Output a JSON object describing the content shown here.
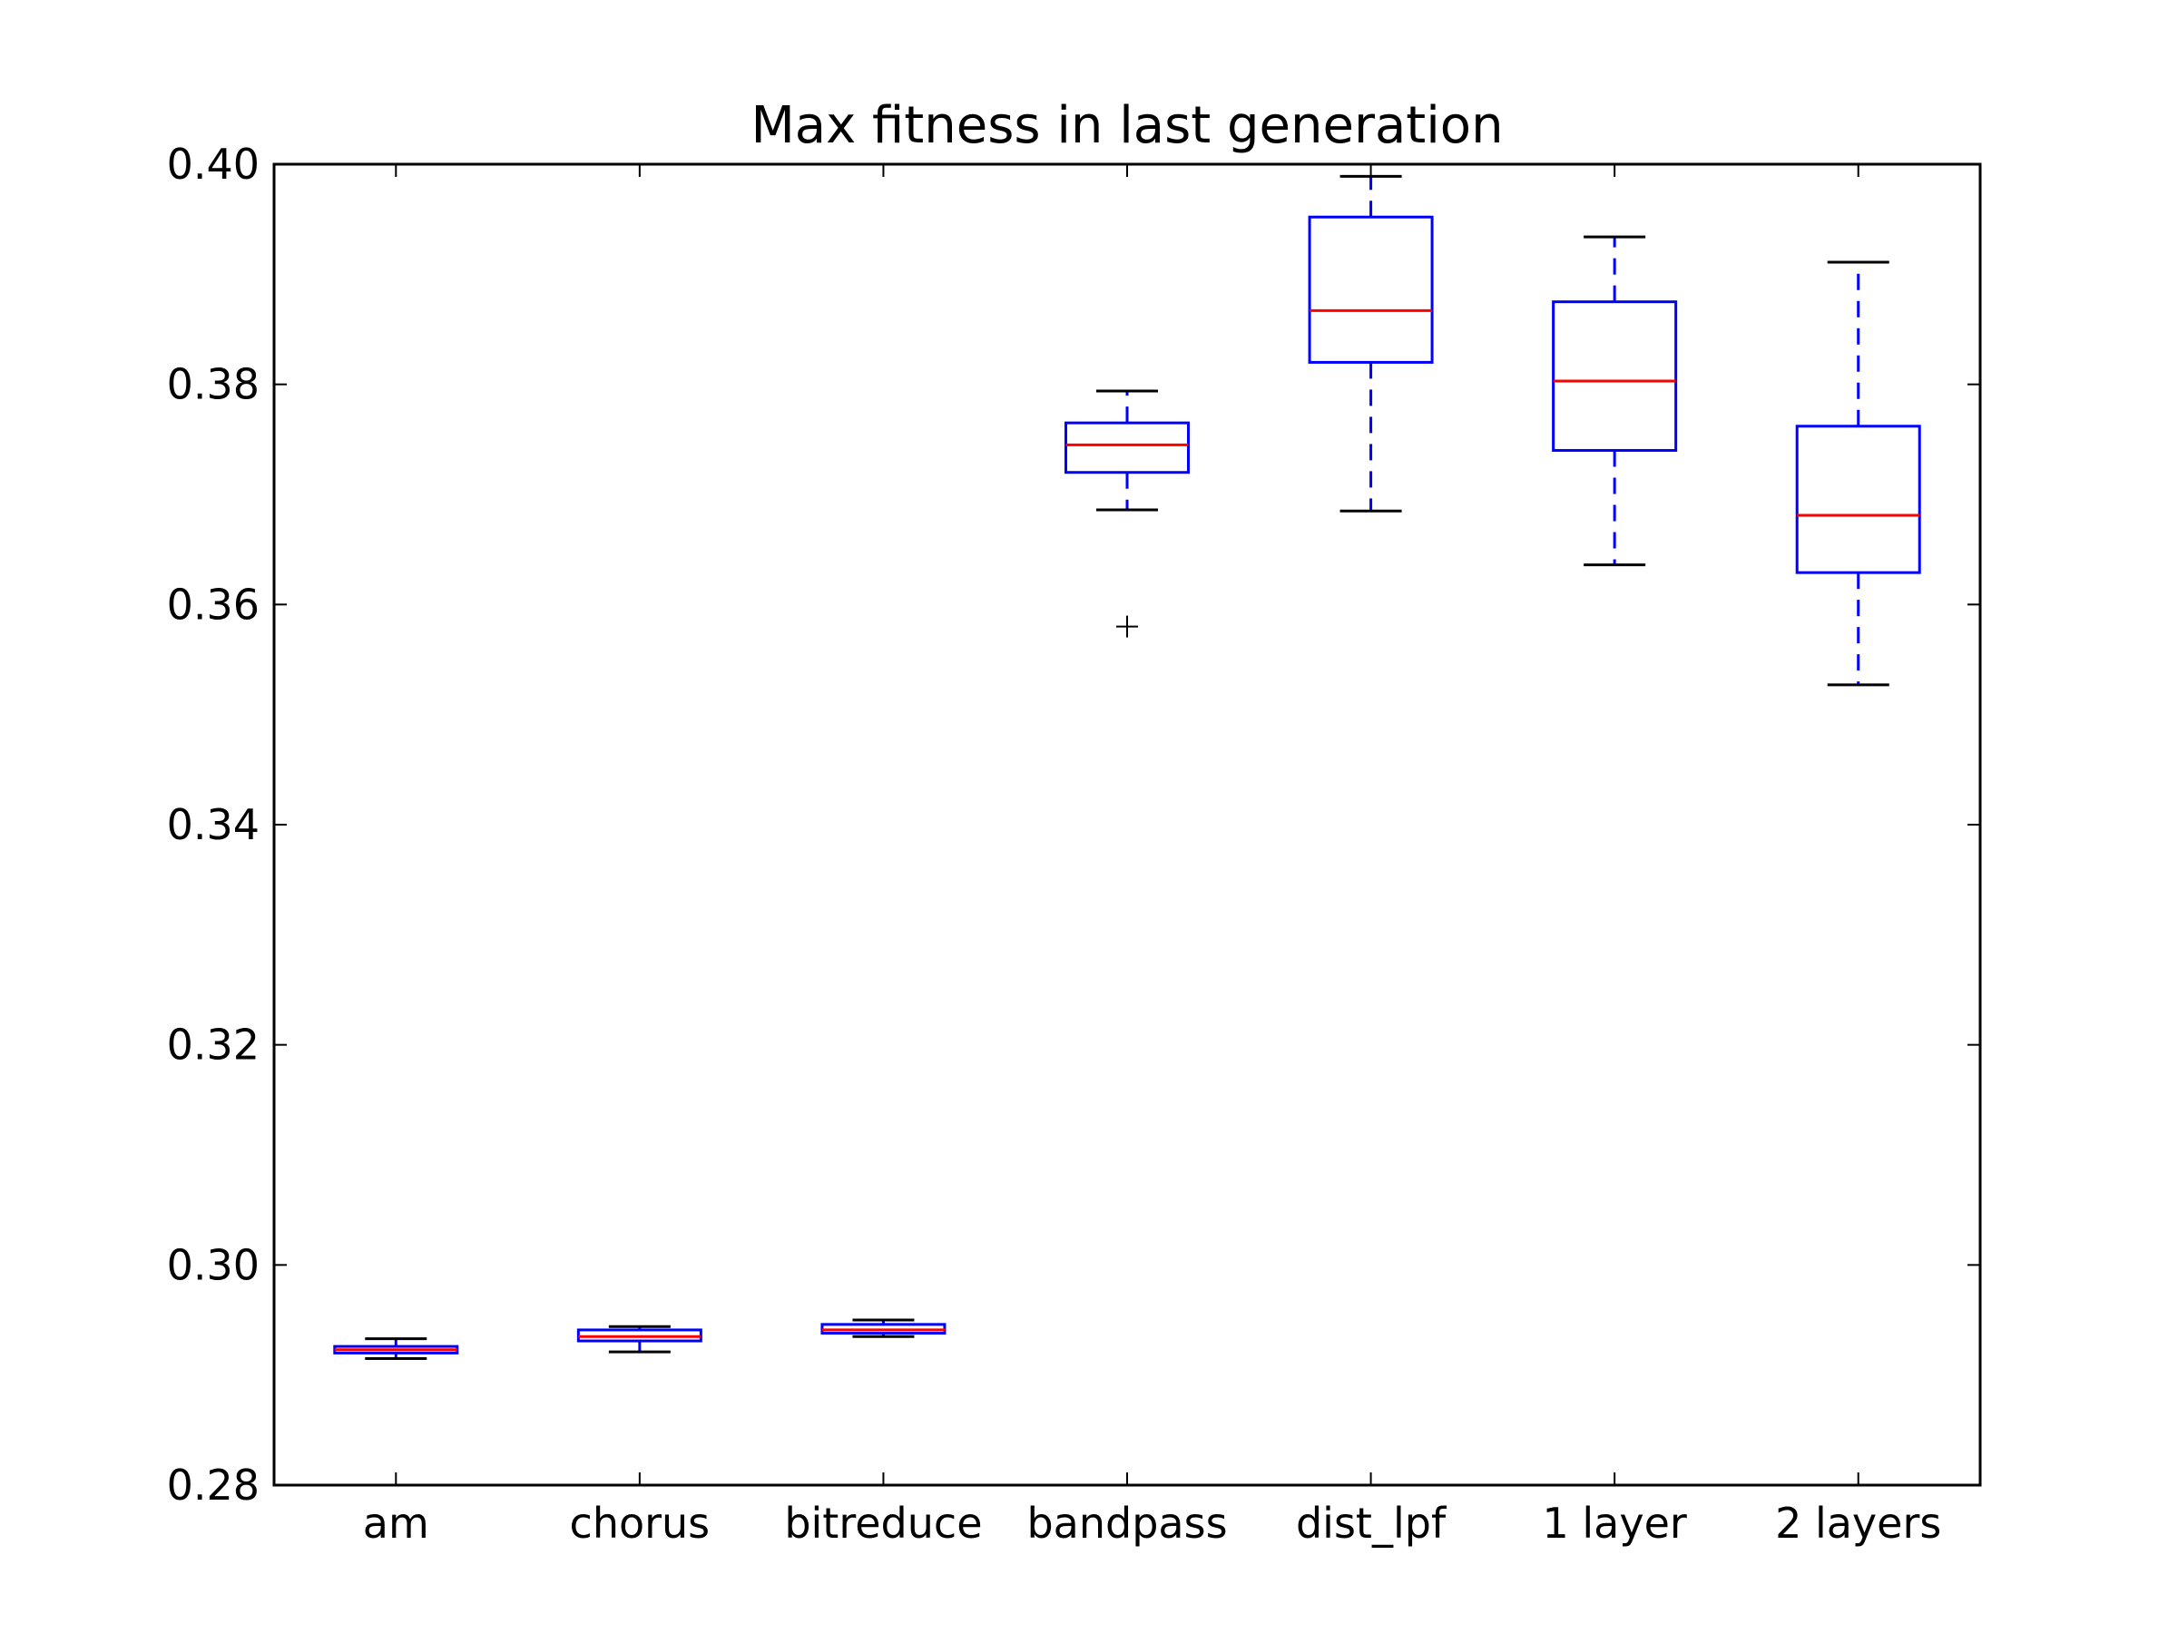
{
  "chart_data": {
    "type": "box",
    "title": "Max fitness in last generation",
    "xlabel": "",
    "ylabel": "",
    "ylim": [
      0.28,
      0.4
    ],
    "yticks": [
      0.28,
      0.3,
      0.32,
      0.34,
      0.36,
      0.38,
      0.4
    ],
    "ytick_labels": [
      "0.28",
      "0.30",
      "0.32",
      "0.34",
      "0.36",
      "0.38",
      "0.40"
    ],
    "grid": false,
    "categories": [
      "am",
      "chorus",
      "bitreduce",
      "bandpass",
      "dist_lpf",
      "1 layer",
      "2 layers"
    ],
    "boxes": [
      {
        "whisker_low": 0.2915,
        "q1": 0.292,
        "median": 0.2923,
        "q3": 0.2926,
        "whisker_high": 0.2933,
        "outliers": []
      },
      {
        "whisker_low": 0.2921,
        "q1": 0.2931,
        "median": 0.2935,
        "q3": 0.2941,
        "whisker_high": 0.2944,
        "outliers": []
      },
      {
        "whisker_low": 0.2935,
        "q1": 0.2938,
        "median": 0.2941,
        "q3": 0.2946,
        "whisker_high": 0.295,
        "outliers": []
      },
      {
        "whisker_low": 0.3686,
        "q1": 0.372,
        "median": 0.3745,
        "q3": 0.3765,
        "whisker_high": 0.3794,
        "outliers": [
          0.358
        ]
      },
      {
        "whisker_low": 0.3685,
        "q1": 0.382,
        "median": 0.3867,
        "q3": 0.3952,
        "whisker_high": 0.3989,
        "outliers": []
      },
      {
        "whisker_low": 0.3636,
        "q1": 0.374,
        "median": 0.3803,
        "q3": 0.3875,
        "whisker_high": 0.3934,
        "outliers": []
      },
      {
        "whisker_low": 0.3527,
        "q1": 0.3629,
        "median": 0.3681,
        "q3": 0.3762,
        "whisker_high": 0.3911,
        "outliers": []
      }
    ],
    "colors": {
      "box": "#0000ff",
      "median": "#ff0000",
      "cap": "#000000",
      "outlier": "#000000",
      "axes": "#000000"
    }
  }
}
